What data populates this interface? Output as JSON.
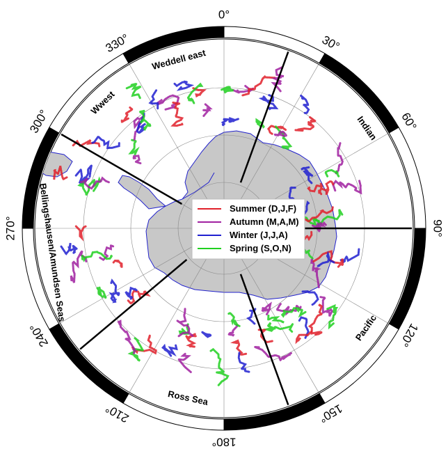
{
  "map": {
    "projection": "south-polar-stereographic",
    "longitude_labels": [
      {
        "lon": 0,
        "text": "0°"
      },
      {
        "lon": 30,
        "text": "30°"
      },
      {
        "lon": 60,
        "text": "60°"
      },
      {
        "lon": 90,
        "text": "90°"
      },
      {
        "lon": 120,
        "text": "120°"
      },
      {
        "lon": 150,
        "text": "150°"
      },
      {
        "lon": 180,
        "text": "180°"
      },
      {
        "lon": 210,
        "text": "210°"
      },
      {
        "lon": 240,
        "text": "240°"
      },
      {
        "lon": 270,
        "text": "270°"
      },
      {
        "lon": 300,
        "text": "300°"
      },
      {
        "lon": 330,
        "text": "330°"
      }
    ],
    "sector_labels": [
      {
        "text": "Weddell east",
        "lon": 345
      },
      {
        "text": "Indian",
        "lon": 55
      },
      {
        "text": "Pacific",
        "lon": 125
      },
      {
        "text": "Ross Sea",
        "lon": 192
      },
      {
        "text": "Bellingshausen/Amundsen Seas",
        "lon": 262
      },
      {
        "text": "Wwest",
        "lon": 316
      }
    ],
    "sector_boundary_lons": [
      20,
      90,
      160,
      230,
      300
    ],
    "colors": {
      "land": "#c8c8c8",
      "ice_edge": "#2222cc",
      "frame": "#000000",
      "graticule": "#888888"
    }
  },
  "legend": {
    "items": [
      {
        "label": "Summer (D,J,F)",
        "color": "#e0202a"
      },
      {
        "label": "Autumn (M,A,M)",
        "color": "#a020a0"
      },
      {
        "label": "Winter (J,J,A)",
        "color": "#2020d0"
      },
      {
        "label": "Spring (S,O,N)",
        "color": "#20d020"
      }
    ]
  }
}
